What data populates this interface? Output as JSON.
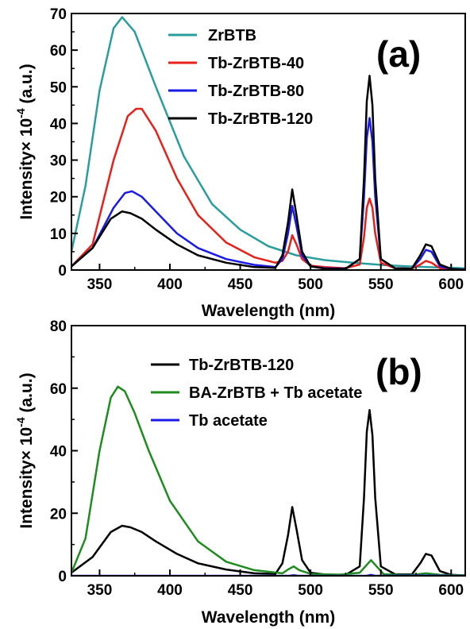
{
  "chart_data": [
    {
      "type": "line",
      "panel_label": "(a)",
      "xlabel": "Wavelength (nm)",
      "ylabel_main": "Intensity",
      "ylabel_mult": "× 10",
      "ylabel_exp": "-4",
      "ylabel_unit": " (a.u.)",
      "xlim": [
        330,
        610
      ],
      "ylim": [
        0,
        70
      ],
      "xticks": [
        350,
        400,
        450,
        500,
        550,
        600
      ],
      "yticks": [
        0,
        10,
        20,
        30,
        40,
        50,
        60,
        70
      ],
      "legend_position": "top-center",
      "series": [
        {
          "name": "ZrBTB",
          "color": "#2a9d9d",
          "x": [
            330,
            340,
            350,
            360,
            366,
            375,
            390,
            410,
            430,
            450,
            470,
            490,
            510,
            530,
            550,
            570,
            590,
            610
          ],
          "y": [
            5,
            23,
            49,
            66,
            69,
            65,
            50,
            31,
            18,
            11,
            6.5,
            4,
            2.7,
            2,
            1.4,
            1,
            0.7,
            0.5
          ]
        },
        {
          "name": "Tb-ZrBTB-40",
          "color": "#e8201a",
          "x": [
            330,
            345,
            360,
            370,
            376,
            380,
            390,
            405,
            420,
            440,
            460,
            475,
            480,
            484,
            487,
            490,
            494,
            500,
            510,
            525,
            535,
            538,
            540,
            542,
            544,
            546,
            550,
            560,
            572,
            578,
            582,
            586,
            592,
            600,
            610
          ],
          "y": [
            1,
            7,
            30,
            42,
            44,
            44,
            38,
            25,
            15,
            7.5,
            3.5,
            2,
            2.5,
            5,
            9.5,
            7,
            3,
            1.2,
            0.8,
            0.5,
            1.5,
            9,
            17,
            19.5,
            17,
            10,
            2,
            0.5,
            0.4,
            1.5,
            2.5,
            2,
            0.5,
            0.2,
            0.1
          ]
        },
        {
          "name": "Tb-ZrBTB-80",
          "color": "#1a1ae6",
          "x": [
            330,
            345,
            360,
            368,
            373,
            380,
            390,
            405,
            420,
            440,
            460,
            475,
            480,
            484,
            487,
            490,
            494,
            500,
            510,
            525,
            535,
            538,
            540,
            542,
            544,
            546,
            550,
            560,
            572,
            578,
            582,
            586,
            592,
            600,
            610
          ],
          "y": [
            1,
            6,
            17,
            21,
            21.5,
            20,
            16,
            10,
            6,
            3,
            1.4,
            0.8,
            3,
            10,
            17.5,
            12,
            4,
            1,
            0.5,
            0.4,
            3,
            20,
            36,
            41.5,
            35,
            20,
            3,
            0.5,
            0.4,
            3,
            5.5,
            5,
            1,
            0.3,
            0.1
          ]
        },
        {
          "name": "Tb-ZrBTB-120",
          "color": "#000000",
          "x": [
            330,
            345,
            358,
            366,
            372,
            380,
            390,
            405,
            420,
            440,
            460,
            475,
            480,
            484,
            487,
            490,
            494,
            500,
            510,
            525,
            535,
            538,
            540,
            542,
            544,
            546,
            550,
            560,
            572,
            578,
            582,
            586,
            592,
            600,
            610
          ],
          "y": [
            1,
            6,
            14,
            16,
            15.5,
            14,
            11,
            7,
            4,
            2,
            0.8,
            0.6,
            4,
            13,
            22,
            15,
            5,
            1,
            0.4,
            0.3,
            3,
            25,
            46,
            53,
            45,
            25,
            3,
            0.5,
            0.4,
            4,
            7,
            6.5,
            1.5,
            0.3,
            0.1
          ]
        }
      ]
    },
    {
      "type": "line",
      "panel_label": "(b)",
      "xlabel": "Wavelength (nm)",
      "ylabel_main": "Intensity",
      "ylabel_mult": "× 10",
      "ylabel_exp": "-4",
      "ylabel_unit": " (a.u.)",
      "xlim": [
        330,
        610
      ],
      "ylim": [
        0,
        80
      ],
      "xticks": [
        350,
        400,
        450,
        500,
        550,
        600
      ],
      "yticks": [
        0,
        20,
        40,
        60,
        80
      ],
      "legend_position": "top-right",
      "series": [
        {
          "name": "Tb-ZrBTB-120",
          "color": "#000000",
          "x": [
            330,
            345,
            358,
            366,
            372,
            380,
            390,
            405,
            420,
            440,
            460,
            475,
            480,
            484,
            487,
            490,
            494,
            500,
            510,
            525,
            535,
            538,
            540,
            542,
            544,
            546,
            550,
            560,
            572,
            578,
            582,
            586,
            592,
            600,
            610
          ],
          "y": [
            1,
            6,
            14,
            16,
            15.5,
            14,
            11,
            7,
            4,
            2,
            0.8,
            0.6,
            4,
            13,
            22,
            15,
            5,
            1,
            0.4,
            0.3,
            3,
            25,
            46,
            53,
            45,
            25,
            3,
            0.5,
            0.4,
            4,
            7,
            6.5,
            1.5,
            0.3,
            0.1
          ]
        },
        {
          "name": "BA-ZrBTB + Tb acetate",
          "color": "#1e8c1e",
          "x": [
            330,
            340,
            350,
            358,
            363,
            368,
            375,
            385,
            400,
            420,
            440,
            460,
            480,
            484,
            488,
            492,
            500,
            520,
            535,
            540,
            543,
            546,
            552,
            570,
            582,
            592,
            610
          ],
          "y": [
            1,
            12,
            40,
            57,
            60.5,
            59,
            52,
            40,
            24,
            11,
            4.5,
            1.8,
            0.8,
            2,
            3,
            1.8,
            0.6,
            0.3,
            1,
            3.5,
            5,
            3.5,
            0.5,
            0.2,
            0.8,
            0.3,
            0.1
          ]
        },
        {
          "name": "Tb acetate",
          "color": "#1a1ae6",
          "x": [
            330,
            400,
            485,
            488,
            491,
            540,
            543,
            546,
            582,
            610
          ],
          "y": [
            0,
            0,
            0,
            0.2,
            0,
            0,
            0.3,
            0,
            0.1,
            0
          ]
        }
      ]
    }
  ]
}
